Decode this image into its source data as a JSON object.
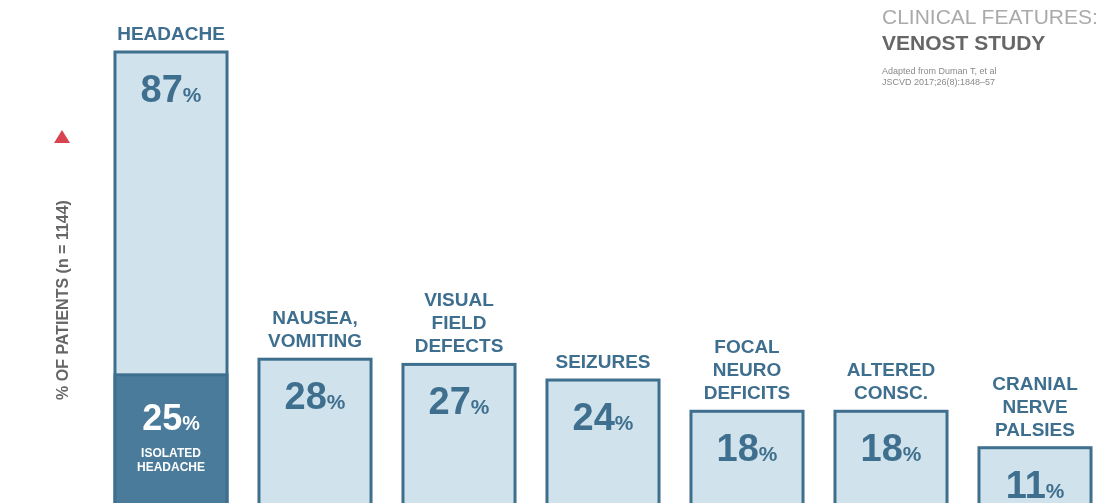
{
  "chart_data": {
    "type": "bar",
    "title": "CLINICAL FEATURES:",
    "subtitle": "VENOST STUDY",
    "ylabel": "% OF PATIENTS (n = 1144)",
    "annotations": [
      "Adapted from Duman T, et al\nJSCVD 2017;26(8):1848–57"
    ],
    "categories": [
      "HEADACHE",
      "NAUSEA,\nVOMITING",
      "VISUAL\nFIELD\nDEFECTS",
      "SEIZURES",
      "FOCAL\nNEURO\nDEFICITS",
      "ALTERED\nCONSC.",
      "CRANIAL\nNERVE\nPALSIES"
    ],
    "series": [
      {
        "color": "#d0e2ec",
        "values": [
          87,
          28,
          27,
          24,
          18,
          18,
          11
        ],
        "value_labels": [
          "87%",
          "28%",
          "27%",
          "24%",
          "18%",
          "18%",
          "11%"
        ]
      },
      {
        "name": "ISOLATED HEADACHE",
        "color": "#4a7b9b",
        "values": [
          25,
          null,
          null,
          null,
          null,
          null,
          null
        ],
        "value_labels": [
          "25%",
          null,
          null,
          null,
          null,
          null,
          null
        ]
      }
    ]
  }
}
